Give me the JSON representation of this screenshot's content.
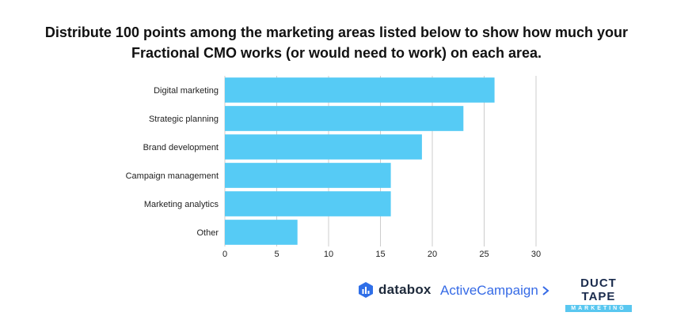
{
  "chart_data": {
    "type": "bar",
    "orientation": "horizontal",
    "title_lines": [
      "Distribute 100 points among the marketing areas listed below to show how much your",
      "Fractional CMO works (or would need to work) on each area."
    ],
    "categories": [
      "Digital marketing",
      "Strategic planning",
      "Brand development",
      "Campaign management",
      "Marketing analytics",
      "Other"
    ],
    "values": [
      26,
      23,
      19,
      16,
      16,
      7
    ],
    "xlim": [
      0,
      30
    ],
    "xticks": [
      0,
      5,
      10,
      15,
      20,
      25,
      30
    ],
    "grid": "vertical",
    "bar_color": "#56cbf5",
    "grid_color": "#cccccc"
  },
  "logos": {
    "databox": "databox",
    "activecampaign": "ActiveCampaign",
    "ducttape_main": "DUCT TAPE",
    "ducttape_sub": "MARKETING"
  }
}
